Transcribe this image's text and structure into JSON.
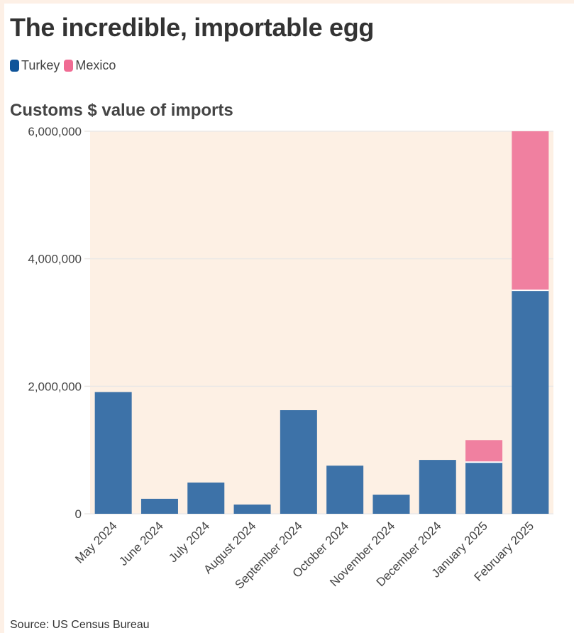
{
  "title": "The incredible, importable egg",
  "source": "Source: US Census Bureau",
  "chart_data": {
    "type": "bar",
    "stacked": true,
    "title": "Customs $ value of imports",
    "xlabel": "",
    "ylabel": "",
    "categories": [
      "May 2024",
      "June 2024",
      "July 2024",
      "August 2024",
      "September 2024",
      "October 2024",
      "November 2024",
      "December 2024",
      "January 2025",
      "February 2025"
    ],
    "series": [
      {
        "name": "Turkey",
        "color": "#3d72a8",
        "legend_color": "#0f5499",
        "values": [
          1910000,
          235000,
          490000,
          145000,
          1625000,
          755000,
          300000,
          845000,
          810000,
          3505000
        ]
      },
      {
        "name": "Mexico",
        "color": "#f080a0",
        "legend_color": "#f06b93",
        "values": [
          0,
          0,
          0,
          0,
          0,
          0,
          0,
          0,
          345000,
          2495000
        ]
      }
    ],
    "ylim": [
      0,
      6000000
    ],
    "yticks": [
      "0",
      "2,000,000",
      "4,000,000",
      "6,000,000"
    ],
    "ytick_values": [
      0,
      2000000,
      4000000,
      6000000
    ],
    "grid": true,
    "legend_position": "top-left",
    "plot_background": "#fdf0e4"
  }
}
